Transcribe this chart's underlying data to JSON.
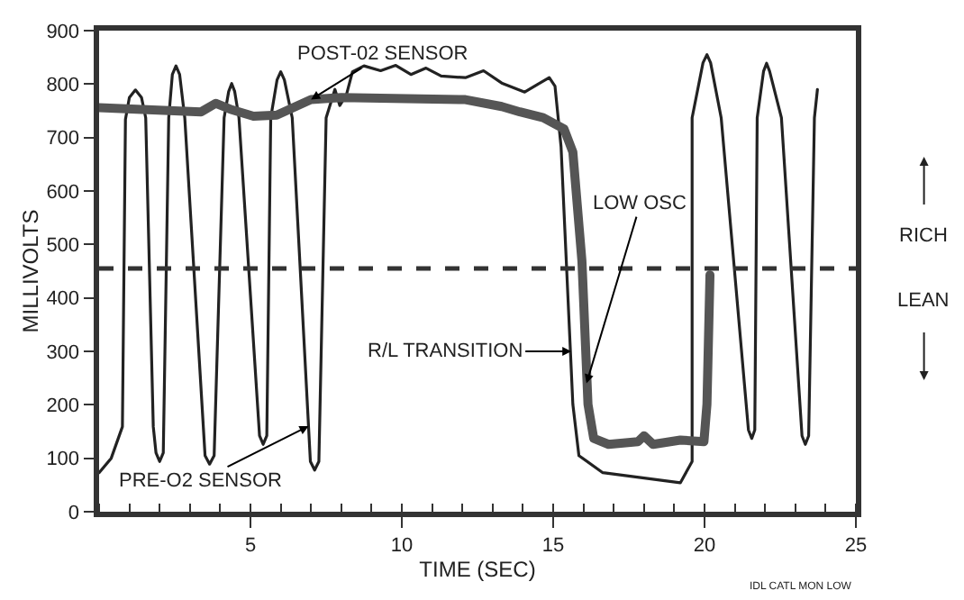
{
  "chart_data": {
    "type": "line",
    "xlabel": "TIME (SEC)",
    "ylabel": "MILLIVOLTS",
    "xlim": [
      0,
      25
    ],
    "xticks": [
      5,
      10,
      15,
      20,
      25
    ],
    "ylim": [
      0,
      900
    ],
    "yticks": [
      0,
      100,
      200,
      300,
      400,
      500,
      600,
      700,
      800,
      900
    ],
    "grid": false,
    "legend": false,
    "marker": "none",
    "series": [
      {
        "color": "#222222",
        "line_style": "solid",
        "x": [
          0,
          0.4,
          0.77,
          0.87,
          1.0,
          1.2,
          1.4,
          1.54,
          1.79,
          1.88,
          2.0,
          2.12,
          2.3,
          2.42,
          2.54,
          2.66,
          2.83,
          3.5,
          3.65,
          3.8,
          4.13,
          4.28,
          4.38,
          4.48,
          4.62,
          5.3,
          5.42,
          5.54,
          5.67,
          5.88,
          6.0,
          6.12,
          6.38,
          6.98,
          7.12,
          7.26,
          7.5,
          7.79,
          7.95,
          8.17,
          8.37,
          8.75,
          9.3,
          9.8,
          10.3,
          10.8,
          11.3,
          12.1,
          12.7,
          13.3,
          14.06,
          14.5,
          14.87,
          15.06,
          15.26,
          15.65,
          15.85,
          16.64,
          19.2,
          19.59,
          19.59,
          19.95,
          20.08,
          20.2,
          20.55,
          21.45,
          21.56,
          21.66,
          21.74,
          21.95,
          22.05,
          22.15,
          22.54,
          23.22,
          23.33,
          23.44,
          23.63,
          23.73
        ],
        "values": [
          73,
          100,
          159,
          734,
          775,
          789,
          775,
          737,
          159,
          110,
          94,
          110,
          737,
          818,
          834,
          818,
          737,
          105,
          89,
          105,
          737,
          786,
          801,
          786,
          737,
          142,
          126,
          142,
          737,
          808,
          823,
          808,
          737,
          94,
          78,
          94,
          737,
          790,
          760,
          780,
          823,
          834,
          825,
          835,
          818,
          830,
          815,
          812,
          825,
          802,
          785,
          800,
          812,
          796,
          683,
          201,
          105,
          73,
          54,
          94,
          737,
          840,
          855,
          840,
          737,
          153,
          137,
          153,
          737,
          824,
          839,
          824,
          737,
          142,
          126,
          142,
          737,
          790
        ]
      },
      {
        "color": "#555555",
        "line_style": "solid",
        "x": [
          0,
          3.37,
          3.85,
          4.33,
          5.1,
          5.87,
          7.0,
          8.0,
          12.1,
          13.3,
          13.9,
          14.67,
          15.36,
          15.65,
          15.95,
          16.15,
          16.34,
          16.83,
          17.8,
          18.0,
          18.3,
          19.2,
          19.98,
          20.08,
          20.18
        ],
        "values": [
          756,
          748,
          764,
          753,
          740,
          742,
          771,
          775,
          771,
          758,
          748,
          737,
          716,
          673,
          469,
          201,
          137,
          126,
          131,
          142,
          126,
          134,
          131,
          201,
          443
        ]
      }
    ],
    "ref_lines": [
      {
        "axis": "y",
        "value": 455,
        "line_style": "dashed",
        "color": "#333333"
      }
    ],
    "annotations": [
      {
        "text": "POST-02 SENSOR",
        "x": 7.0,
        "y": 771
      },
      {
        "text": "PRE-O2 SENSOR",
        "x": 6.92,
        "y": 160
      },
      {
        "text": "LOW OSC",
        "x": 16.1,
        "y": 240
      },
      {
        "text": "R/L TRANSITION",
        "x": 15.6,
        "y": 300
      },
      "RICH",
      "LEAN",
      "IDL CATL MON LOW"
    ]
  }
}
